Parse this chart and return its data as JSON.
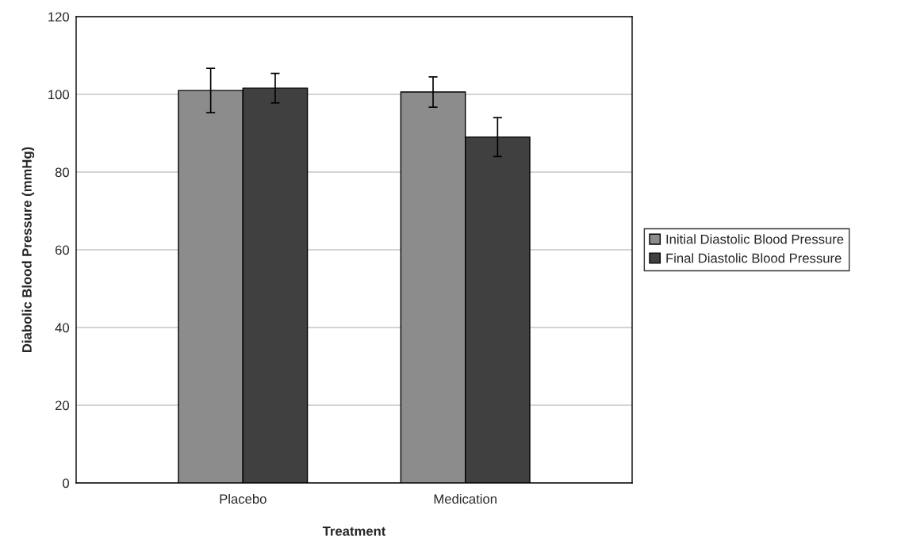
{
  "chart_data": {
    "type": "bar",
    "xlabel": "Treatment",
    "ylabel": "Diabolic Blood Pressure (mmHg)",
    "categories": [
      "Placebo",
      "Medication"
    ],
    "series": [
      {
        "name": "Initial Diastolic Blood Pressure",
        "color": "#8c8c8c",
        "values": [
          101.0,
          100.6
        ],
        "errors": [
          5.7,
          3.9
        ]
      },
      {
        "name": "Final Diastolic Blood Pressure",
        "color": "#404040",
        "values": [
          101.6,
          89.0
        ],
        "errors": [
          3.8,
          5.0
        ]
      }
    ],
    "ylim": [
      0,
      120
    ],
    "yticks": [
      0,
      20,
      40,
      60,
      80,
      100,
      120
    ],
    "grid": "y",
    "legend": "right"
  }
}
